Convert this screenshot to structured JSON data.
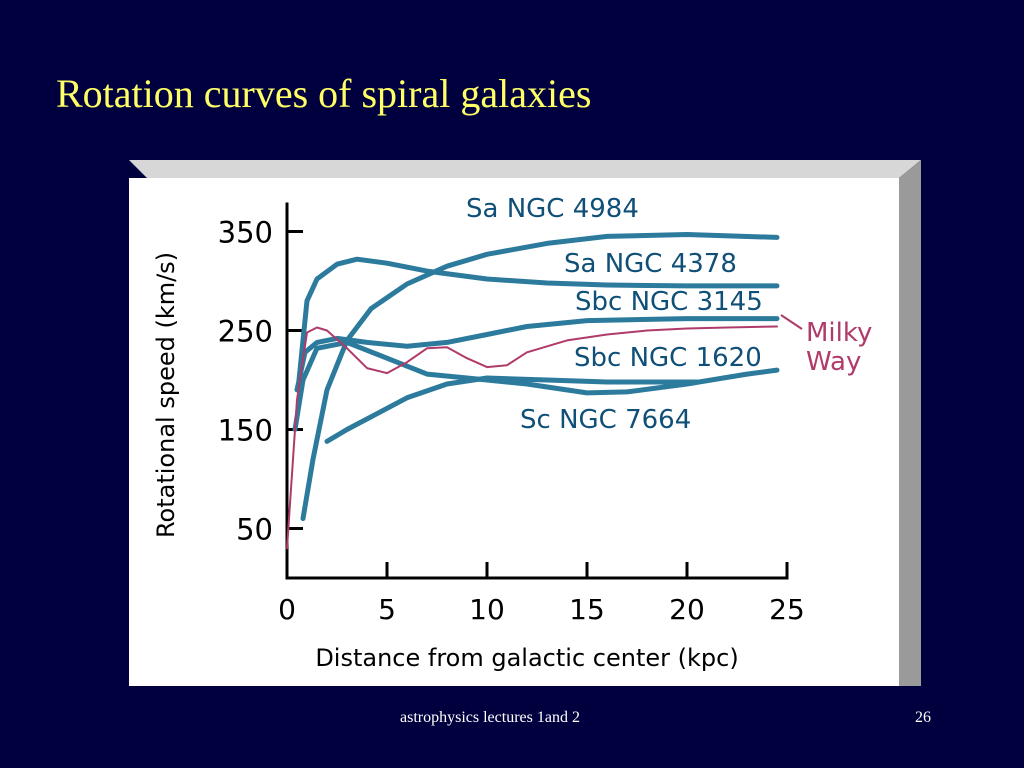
{
  "slide": {
    "title": "Rotation curves of spiral galaxies",
    "footer_text": "astrophysics lectures 1and 2",
    "page_number": "26"
  },
  "colors": {
    "background": "#00003f",
    "title": "#ffff66",
    "footer": "#ffffff",
    "chart_background": "#ffffff",
    "frame_shadow": "#9a9a9a",
    "galaxy_curves": "#2c7b9d",
    "milky_way": "#b03a6a",
    "axis": "#000000"
  },
  "chart_data": {
    "type": "line",
    "xlabel": "Distance from galactic center (kpc)",
    "ylabel": "Rotational speed (km/s)",
    "xlim": [
      0,
      25
    ],
    "ylim": [
      0,
      400
    ],
    "x_ticks": [
      0,
      5,
      10,
      15,
      20,
      25
    ],
    "y_ticks": [
      50,
      150,
      250,
      350
    ],
    "grid": false,
    "legend": "inline labels at right end of curves",
    "series": [
      {
        "name": "Sa NGC 4984",
        "color": "#2c7b9d",
        "points": [
          [
            0.8,
            60
          ],
          [
            1.3,
            120
          ],
          [
            2,
            190
          ],
          [
            3,
            240
          ],
          [
            4.2,
            272
          ],
          [
            6,
            297
          ],
          [
            8,
            315
          ],
          [
            10,
            327
          ],
          [
            13,
            338
          ],
          [
            16,
            345
          ],
          [
            20,
            347
          ],
          [
            24.5,
            344
          ]
        ]
      },
      {
        "name": "Sa NGC 4378",
        "color": "#2c7b9d",
        "points": [
          [
            0.6,
            200
          ],
          [
            1,
            280
          ],
          [
            1.5,
            302
          ],
          [
            2.5,
            317
          ],
          [
            3.5,
            322
          ],
          [
            5,
            318
          ],
          [
            7,
            310
          ],
          [
            10,
            302
          ],
          [
            13,
            298
          ],
          [
            16,
            296
          ],
          [
            20,
            295
          ],
          [
            24.5,
            295
          ]
        ]
      },
      {
        "name": "Sbc NGC 3145",
        "color": "#2c7b9d",
        "points": [
          [
            0.5,
            190
          ],
          [
            0.9,
            228
          ],
          [
            1.5,
            238
          ],
          [
            2.5,
            242
          ],
          [
            4,
            238
          ],
          [
            6,
            234
          ],
          [
            8,
            238
          ],
          [
            10,
            246
          ],
          [
            12,
            254
          ],
          [
            15,
            260
          ],
          [
            20,
            262
          ],
          [
            24.5,
            262
          ]
        ]
      },
      {
        "name": "Sbc NGC 1620",
        "color": "#2c7b9d",
        "points": [
          [
            0.4,
            150
          ],
          [
            0.8,
            200
          ],
          [
            1.5,
            232
          ],
          [
            3,
            238
          ],
          [
            5,
            222
          ],
          [
            7,
            206
          ],
          [
            9,
            202
          ],
          [
            12,
            196
          ],
          [
            15,
            187
          ],
          [
            17,
            188
          ],
          [
            20,
            196
          ],
          [
            23,
            206
          ],
          [
            24.5,
            210
          ]
        ]
      },
      {
        "name": "Sc NGC 7664",
        "color": "#2c7b9d",
        "points": [
          [
            2,
            138
          ],
          [
            3,
            150
          ],
          [
            4.5,
            166
          ],
          [
            6,
            182
          ],
          [
            8,
            196
          ],
          [
            10,
            202
          ],
          [
            13,
            200
          ],
          [
            16,
            198
          ],
          [
            19,
            198
          ],
          [
            20.5,
            198
          ]
        ]
      },
      {
        "name": "Milky Way",
        "color": "#b03a6a",
        "points": [
          [
            0,
            30
          ],
          [
            0.5,
            180
          ],
          [
            1,
            248
          ],
          [
            1.5,
            253
          ],
          [
            2,
            250
          ],
          [
            3,
            232
          ],
          [
            4,
            212
          ],
          [
            5,
            207
          ],
          [
            6,
            218
          ],
          [
            7,
            232
          ],
          [
            8,
            233
          ],
          [
            9,
            222
          ],
          [
            10,
            213
          ],
          [
            11,
            215
          ],
          [
            12,
            228
          ],
          [
            14,
            240
          ],
          [
            16,
            246
          ],
          [
            18,
            250
          ],
          [
            20,
            252
          ],
          [
            22,
            253
          ],
          [
            24.5,
            254
          ]
        ]
      }
    ]
  }
}
